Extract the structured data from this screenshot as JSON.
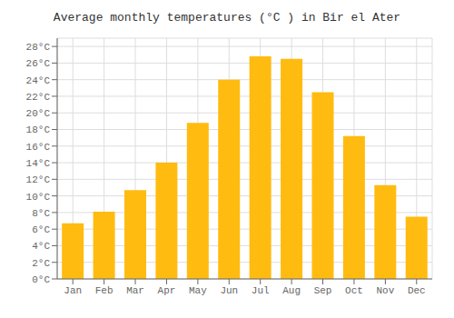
{
  "chart_data": {
    "type": "bar",
    "title": "Average monthly temperatures (°C ) in Bir el Ater",
    "categories": [
      "Jan",
      "Feb",
      "Mar",
      "Apr",
      "May",
      "Jun",
      "Jul",
      "Aug",
      "Sep",
      "Oct",
      "Nov",
      "Dec"
    ],
    "values": [
      6.7,
      8.1,
      10.7,
      14.0,
      18.8,
      24.0,
      26.8,
      26.5,
      22.5,
      17.2,
      11.3,
      7.5
    ],
    "color": "#FFBB10",
    "ylim": [
      0,
      29
    ],
    "yticks": [
      {
        "value": 0,
        "label": "0°C"
      },
      {
        "value": 2,
        "label": "2°C"
      },
      {
        "value": 4,
        "label": "4°C"
      },
      {
        "value": 6,
        "label": "6°C"
      },
      {
        "value": 8,
        "label": "8°C"
      },
      {
        "value": 10,
        "label": "10°C"
      },
      {
        "value": 12,
        "label": "12°C"
      },
      {
        "value": 14,
        "label": "14°C"
      },
      {
        "value": 16,
        "label": "16°C"
      },
      {
        "value": 18,
        "label": "18°C"
      },
      {
        "value": 20,
        "label": "20°C"
      },
      {
        "value": 22,
        "label": "22°C"
      },
      {
        "value": 24,
        "label": "24°C"
      },
      {
        "value": 26,
        "label": "26°C"
      },
      {
        "value": 28,
        "label": "28°C"
      }
    ],
    "grid": true
  }
}
